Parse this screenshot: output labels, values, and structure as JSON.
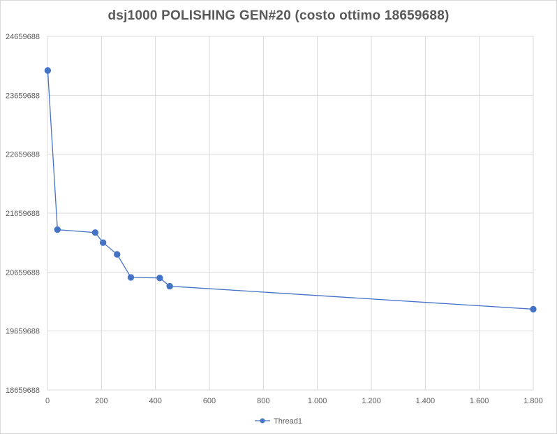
{
  "chart_data": {
    "type": "line",
    "title": "dsj1000 POLISHING GEN#20 (costo ottimo 18659688)",
    "xlabel": "",
    "ylabel": "",
    "xlim": [
      0,
      1800
    ],
    "ylim": [
      18659688,
      24659688
    ],
    "x_ticks": [
      0,
      200,
      400,
      600,
      800,
      1000,
      1200,
      1400,
      1600,
      1800
    ],
    "x_tick_labels": [
      "0",
      "200",
      "400",
      "600",
      "800",
      "1.000",
      "1.200",
      "1.400",
      "1.600",
      "1.800"
    ],
    "y_ticks": [
      18659688,
      19659688,
      20659688,
      21659688,
      22659688,
      23659688,
      24659688
    ],
    "y_tick_labels": [
      "18659688",
      "19659688",
      "20659688",
      "21659688",
      "22659688",
      "23659688",
      "24659688"
    ],
    "grid": true,
    "legend_position": "bottom",
    "series": [
      {
        "name": "Thread1",
        "color": "#4472c4",
        "x": [
          1,
          37,
          177,
          206,
          258,
          309,
          416,
          453,
          1800
        ],
        "y": [
          24080000,
          21380000,
          21330000,
          21160000,
          20960000,
          20570000,
          20560000,
          20420000,
          20030000
        ]
      }
    ]
  }
}
